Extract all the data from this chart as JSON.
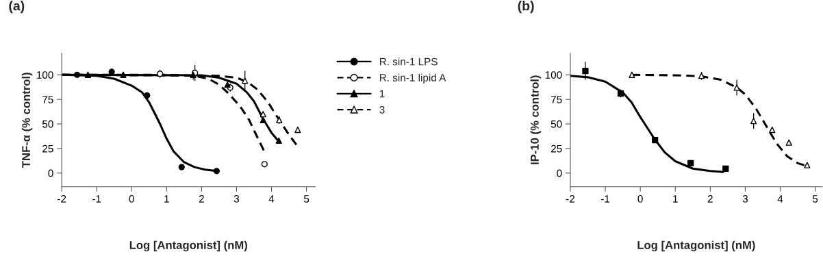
{
  "chart_data": [
    {
      "type": "scatter",
      "title": "(a)",
      "xlabel": "Log [Antagonist] (nM)",
      "ylabel": "TNF-α (% control)",
      "xlim": [
        -2,
        5.25
      ],
      "ylim": [
        -14,
        122
      ],
      "xticks": [
        -2,
        -1,
        0,
        1,
        2,
        3,
        4,
        5
      ],
      "yticks": [
        0,
        25,
        50,
        75,
        100
      ],
      "grid": false,
      "legend": "right",
      "series": [
        {
          "name": "R. sin-1 LPS",
          "marker": "circle",
          "line_style": "solid",
          "color": "#000000",
          "x": [
            -1.56,
            -0.57,
            0.44,
            1.43,
            2.43
          ],
          "values": [
            100,
            103,
            79,
            6,
            2
          ],
          "errors": [
            null,
            3,
            null,
            null,
            null
          ]
        },
        {
          "name": "R. sin-1 lipid A",
          "marker": "circle",
          "line_style": "dashed",
          "color": "#ffffff",
          "x": [
            0.81,
            1.81,
            2.82,
            3.8
          ],
          "values": [
            101,
            102,
            87,
            9
          ],
          "errors": [
            4,
            8,
            4,
            null
          ]
        },
        {
          "name": "1",
          "marker": "triangle",
          "line_style": "solid",
          "color": "#000000",
          "x": [
            -1.25,
            -0.24,
            1.76,
            2.74,
            3.76,
            4.21
          ],
          "values": [
            100,
            100,
            100,
            90,
            54,
            33
          ],
          "errors": [
            3,
            3,
            5,
            null,
            null,
            null
          ]
        },
        {
          "name": "3",
          "marker": "triangle",
          "line_style": "dashed",
          "color": "#ffffff",
          "x": [
            3.24,
            3.76,
            4.22,
            4.75
          ],
          "values": [
            94,
            60,
            54,
            44
          ],
          "errors": [
            10,
            null,
            4,
            null
          ]
        },
        {
          "type": "line",
          "line_style": "solid",
          "color": "#000000",
          "x": [
            -2,
            -1,
            -0.5,
            0,
            0.3,
            0.5,
            0.7,
            0.81,
            1.0,
            1.2,
            1.5,
            1.8,
            2.1,
            2.43
          ],
          "values": [
            100,
            99,
            96,
            89,
            82,
            72,
            58,
            50,
            35,
            22,
            11,
            6,
            3.5,
            2
          ]
        },
        {
          "type": "line",
          "line_style": "dashed",
          "color": "#000000",
          "x": [
            -2,
            1.0,
            1.8,
            2.2,
            2.5,
            2.77,
            3.1,
            3.36,
            3.56,
            3.78
          ],
          "values": [
            100,
            100,
            99,
            96,
            90,
            81,
            68,
            54,
            39,
            23
          ]
        },
        {
          "type": "line",
          "line_style": "solid",
          "color": "#000000",
          "x": [
            -2,
            2.0,
            2.5,
            3.0,
            3.3,
            3.5,
            3.76,
            4.0,
            4.21
          ],
          "values": [
            100,
            99.5,
            97,
            91,
            82,
            73,
            55,
            41,
            32
          ]
        },
        {
          "type": "line",
          "line_style": "dashed",
          "color": "#000000",
          "x": [
            -2,
            2.5,
            3.0,
            3.3,
            3.6,
            3.9,
            4.22,
            4.5,
            4.75
          ],
          "values": [
            100,
            99,
            97,
            93,
            85,
            72,
            54,
            39,
            27
          ]
        }
      ]
    },
    {
      "type": "scatter",
      "title": "(b)",
      "xlabel": "Log [Antagonist] (nM)",
      "ylabel": "IP-10 (% control)",
      "xlim": [
        -2,
        5.2
      ],
      "ylim": [
        -14,
        122
      ],
      "xticks": [
        -2,
        -1,
        0,
        1,
        2,
        3,
        4,
        5
      ],
      "yticks": [
        0,
        25,
        50,
        75,
        100
      ],
      "grid": false,
      "series": [
        {
          "marker": "square",
          "color": "#000000",
          "x": [
            -1.57,
            -0.56,
            0.42,
            1.44,
            2.44
          ],
          "values": [
            104,
            81,
            33.5,
            10,
            4.5
          ],
          "errors": [
            9,
            4,
            null,
            null,
            null
          ]
        },
        {
          "marker": "triangle",
          "color": "#ffffff",
          "x": [
            -0.24,
            1.75,
            2.76,
            3.24,
            3.77,
            4.25,
            4.77
          ],
          "values": [
            100,
            99,
            87,
            53,
            44,
            31,
            8
          ],
          "errors": [
            null,
            4,
            8,
            8,
            null,
            3,
            null
          ]
        },
        {
          "type": "line",
          "line_style": "solid",
          "color": "#000000",
          "x": [
            -2,
            -1.5,
            -1,
            -0.5,
            -0.25,
            0,
            0.2,
            0.4,
            0.7,
            1.0,
            1.5,
            2.0,
            2.37
          ],
          "values": [
            99,
            97.5,
            93,
            82,
            72,
            57,
            46,
            35,
            21,
            12,
            4.5,
            2,
            1
          ]
        },
        {
          "type": "line",
          "line_style": "dashed",
          "color": "#000000",
          "x": [
            -0.24,
            1.0,
            1.75,
            2.3,
            2.76,
            3.0,
            3.3,
            3.6,
            3.9,
            4.2,
            4.5,
            4.77
          ],
          "values": [
            100,
            99.5,
            98.5,
            95,
            87,
            80,
            66,
            48,
            30,
            17,
            10,
            7
          ]
        }
      ]
    }
  ]
}
